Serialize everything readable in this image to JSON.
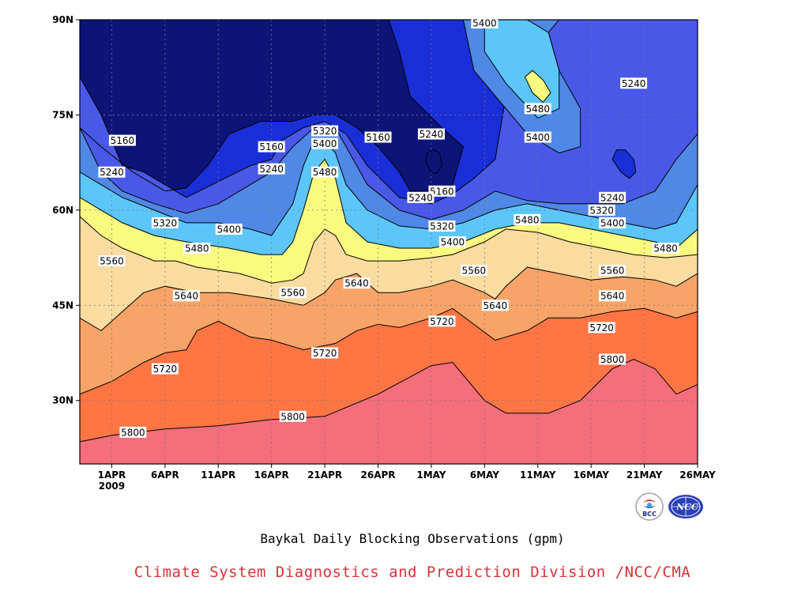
{
  "chart_data": {
    "type": "contour",
    "title": "Baykal Daily Blocking Observations (gpm)",
    "credit": "Climate System Diagnostics and Prediction Division /NCC/CMA",
    "x_ticks": [
      "1APR",
      "6APR",
      "11APR",
      "16APR",
      "21APR",
      "26APR",
      "1MAY",
      "6MAY",
      "11MAY",
      "16MAY",
      "21MAY",
      "26MAY"
    ],
    "x_tick_days": [
      1,
      6,
      11,
      16,
      21,
      26,
      31,
      36,
      41,
      46,
      51,
      56
    ],
    "x_year_label": "2009",
    "x_range_days": [
      -2,
      56
    ],
    "y_ticks": [
      "30N",
      "45N",
      "60N",
      "75N",
      "90N"
    ],
    "y_tick_values": [
      30,
      45,
      60,
      75,
      90
    ],
    "y_range": [
      20,
      90
    ],
    "grid": true,
    "contour_levels": [
      5160,
      5240,
      5320,
      5400,
      5480,
      5560,
      5640,
      5720,
      5800
    ],
    "fill_colors": [
      "#0c1478",
      "#1a2ed8",
      "#4a58e8",
      "#5088e6",
      "#5cc6fa",
      "#fafa80",
      "#fadca0",
      "#f8a468",
      "#ff7644",
      "#f46e7c"
    ],
    "contours": [
      {
        "level": 5800,
        "points": [
          [
            -2,
            23.5
          ],
          [
            1,
            24.5
          ],
          [
            6,
            25.5
          ],
          [
            11,
            26
          ],
          [
            16,
            27
          ],
          [
            21,
            27.5
          ],
          [
            26,
            31
          ],
          [
            31,
            35.5
          ],
          [
            33,
            36
          ],
          [
            36,
            30
          ],
          [
            38,
            28
          ],
          [
            42,
            28
          ],
          [
            45,
            30
          ],
          [
            48,
            35
          ],
          [
            50,
            36.5
          ],
          [
            52,
            35
          ],
          [
            54,
            31
          ],
          [
            56,
            32.5
          ]
        ]
      },
      {
        "level": 5720,
        "points": [
          [
            -2,
            31
          ],
          [
            1,
            33
          ],
          [
            4,
            36
          ],
          [
            6,
            37.5
          ],
          [
            8,
            38
          ],
          [
            9,
            41
          ],
          [
            11,
            42.5
          ],
          [
            14,
            40
          ],
          [
            16,
            39.5
          ],
          [
            19,
            38
          ],
          [
            22,
            39
          ],
          [
            24,
            41
          ],
          [
            26,
            42
          ],
          [
            28,
            41.5
          ],
          [
            31,
            43
          ],
          [
            33,
            44.5
          ],
          [
            35,
            42
          ],
          [
            37,
            39.5
          ],
          [
            40,
            41
          ],
          [
            42,
            43
          ],
          [
            45,
            43
          ],
          [
            48,
            44
          ],
          [
            51,
            44.5
          ],
          [
            54,
            43
          ],
          [
            56,
            44
          ]
        ]
      },
      {
        "level": 5640,
        "points": [
          [
            -2,
            43
          ],
          [
            0,
            41
          ],
          [
            2,
            44
          ],
          [
            4,
            47
          ],
          [
            6,
            48
          ],
          [
            9,
            47
          ],
          [
            12,
            47
          ],
          [
            16,
            46
          ],
          [
            19,
            45
          ],
          [
            21,
            47
          ],
          [
            22,
            49
          ],
          [
            24,
            50
          ],
          [
            26,
            47
          ],
          [
            28,
            47
          ],
          [
            31,
            48
          ],
          [
            33,
            49
          ],
          [
            36,
            47
          ],
          [
            37,
            46
          ],
          [
            38,
            48
          ],
          [
            40,
            51
          ],
          [
            43,
            50
          ],
          [
            46,
            49
          ],
          [
            49,
            49.5
          ],
          [
            52,
            49
          ],
          [
            54,
            48
          ],
          [
            56,
            50
          ]
        ]
      },
      {
        "level": 5560,
        "points": [
          [
            -2,
            59
          ],
          [
            0,
            56
          ],
          [
            2,
            54
          ],
          [
            5,
            52
          ],
          [
            7,
            52
          ],
          [
            9,
            51
          ],
          [
            13,
            50
          ],
          [
            16,
            48.5
          ],
          [
            18,
            49
          ],
          [
            19,
            50
          ],
          [
            20,
            55
          ],
          [
            21,
            57
          ],
          [
            22,
            56
          ],
          [
            23,
            53
          ],
          [
            25,
            52
          ],
          [
            28,
            52
          ],
          [
            31,
            52.5
          ],
          [
            33,
            53
          ],
          [
            36,
            55
          ],
          [
            38,
            57
          ],
          [
            41,
            56.5
          ],
          [
            44,
            55
          ],
          [
            47,
            54
          ],
          [
            50,
            53
          ],
          [
            53,
            52.5
          ],
          [
            56,
            53
          ]
        ]
      },
      {
        "level": 5480,
        "points": [
          [
            -2,
            62
          ],
          [
            0,
            60
          ],
          [
            2,
            58
          ],
          [
            5,
            56
          ],
          [
            8,
            55
          ],
          [
            12,
            54
          ],
          [
            15,
            53
          ],
          [
            17,
            53
          ],
          [
            18,
            55
          ],
          [
            19,
            60
          ],
          [
            20,
            66
          ],
          [
            21,
            68
          ],
          [
            22,
            65
          ],
          [
            23,
            58
          ],
          [
            25,
            55
          ],
          [
            28,
            54
          ],
          [
            31,
            54
          ],
          [
            34,
            55
          ],
          [
            37,
            57
          ],
          [
            40,
            58
          ],
          [
            43,
            58
          ],
          [
            46,
            57
          ],
          [
            49,
            56
          ],
          [
            52,
            55
          ],
          [
            54,
            54
          ],
          [
            56,
            57
          ],
          [
            56,
            70
          ]
        ]
      },
      {
        "level": 5400,
        "points": [
          [
            -2,
            66
          ],
          [
            0,
            64
          ],
          [
            2,
            62
          ],
          [
            5,
            60
          ],
          [
            8,
            58
          ],
          [
            11,
            58
          ],
          [
            14,
            57
          ],
          [
            16,
            56
          ],
          [
            18,
            61
          ],
          [
            19,
            67
          ],
          [
            20,
            71
          ],
          [
            21,
            71
          ],
          [
            22,
            69
          ],
          [
            23,
            64
          ],
          [
            25,
            60
          ],
          [
            28,
            57.5
          ],
          [
            31,
            57
          ],
          [
            34,
            58
          ],
          [
            37,
            60
          ],
          [
            40,
            61
          ],
          [
            43,
            60
          ],
          [
            46,
            59
          ],
          [
            49,
            58
          ],
          [
            52,
            57
          ],
          [
            54,
            58
          ],
          [
            56,
            64
          ],
          [
            56,
            75
          ]
        ]
      },
      {
        "level": 5320,
        "points": [
          [
            -2,
            73
          ],
          [
            0,
            66
          ],
          [
            2,
            63
          ],
          [
            5,
            61
          ],
          [
            8,
            59.5
          ],
          [
            11,
            61
          ],
          [
            14,
            64
          ],
          [
            16,
            66
          ],
          [
            18,
            70
          ],
          [
            20,
            73
          ],
          [
            22,
            73
          ],
          [
            23,
            70
          ],
          [
            25,
            64
          ],
          [
            28,
            60
          ],
          [
            31,
            58.5
          ],
          [
            34,
            60
          ],
          [
            37,
            63
          ],
          [
            40,
            61.5
          ],
          [
            43,
            61
          ],
          [
            46,
            61
          ],
          [
            49,
            61
          ],
          [
            52,
            63
          ],
          [
            54,
            68
          ],
          [
            56,
            72
          ]
        ]
      },
      {
        "level": 5240,
        "points": [
          [
            -2,
            81
          ],
          [
            0,
            75
          ],
          [
            2,
            67
          ],
          [
            4,
            66
          ],
          [
            6,
            64
          ],
          [
            8,
            62
          ],
          [
            11,
            64.5
          ],
          [
            14,
            67
          ],
          [
            16,
            68
          ],
          [
            17,
            71
          ],
          [
            19,
            73
          ],
          [
            21,
            74
          ],
          [
            23,
            72
          ],
          [
            25,
            67
          ],
          [
            28,
            62
          ],
          [
            31,
            61
          ],
          [
            33,
            62.5
          ],
          [
            35,
            65
          ],
          [
            37,
            68
          ],
          [
            38,
            78
          ],
          [
            37,
            86
          ],
          [
            38,
            90
          ]
        ]
      },
      {
        "level": 5160,
        "points": [
          [
            -2,
            73
          ],
          [
            0,
            70
          ],
          [
            3,
            66
          ],
          [
            6,
            63
          ],
          [
            8,
            63.5
          ],
          [
            10,
            67
          ],
          [
            12,
            72
          ],
          [
            15,
            74
          ],
          [
            18,
            74
          ],
          [
            20,
            75
          ],
          [
            22,
            75
          ],
          [
            24,
            73
          ],
          [
            26,
            70
          ],
          [
            28,
            66
          ],
          [
            29,
            63
          ],
          [
            31,
            63
          ],
          [
            33,
            64
          ],
          [
            34,
            70
          ],
          [
            32,
            73
          ],
          [
            29,
            78
          ],
          [
            28,
            85
          ],
          [
            27,
            90
          ]
        ]
      }
    ],
    "contour_labels": [
      {
        "text": "5160",
        "day": 2,
        "lat": 71
      },
      {
        "text": "5240",
        "day": 1,
        "lat": 66
      },
      {
        "text": "5320",
        "day": 6,
        "lat": 58
      },
      {
        "text": "5480",
        "day": 9,
        "lat": 54
      },
      {
        "text": "5400",
        "day": 12,
        "lat": 57
      },
      {
        "text": "5160",
        "day": 16,
        "lat": 70
      },
      {
        "text": "5240",
        "day": 16,
        "lat": 66.5
      },
      {
        "text": "5560",
        "day": 1,
        "lat": 52
      },
      {
        "text": "5640",
        "day": 8,
        "lat": 46.5
      },
      {
        "text": "5720",
        "day": 6,
        "lat": 35
      },
      {
        "text": "5800",
        "day": 3,
        "lat": 25
      },
      {
        "text": "5320",
        "day": 21,
        "lat": 72.5
      },
      {
        "text": "5400",
        "day": 21,
        "lat": 70.5
      },
      {
        "text": "5480",
        "day": 21,
        "lat": 66
      },
      {
        "text": "5160",
        "day": 26,
        "lat": 71.5
      },
      {
        "text": "5240",
        "day": 31,
        "lat": 72
      },
      {
        "text": "5160",
        "day": 32,
        "lat": 63
      },
      {
        "text": "5240",
        "day": 30,
        "lat": 62
      },
      {
        "text": "5320",
        "day": 32,
        "lat": 57.5
      },
      {
        "text": "5400",
        "day": 33,
        "lat": 55
      },
      {
        "text": "5560",
        "day": 35,
        "lat": 50.5
      },
      {
        "text": "5640",
        "day": 37,
        "lat": 45
      },
      {
        "text": "5720",
        "day": 32,
        "lat": 42.5
      },
      {
        "text": "5560",
        "day": 18,
        "lat": 47
      },
      {
        "text": "5640",
        "day": 24,
        "lat": 48.5
      },
      {
        "text": "5720",
        "day": 21,
        "lat": 37.5
      },
      {
        "text": "5800",
        "day": 18,
        "lat": 27.5
      },
      {
        "text": "5400",
        "day": 36,
        "lat": 89.5
      },
      {
        "text": "5480",
        "day": 41,
        "lat": 76
      },
      {
        "text": "5400",
        "day": 41,
        "lat": 71.5
      },
      {
        "text": "5480",
        "day": 40,
        "lat": 58.5
      },
      {
        "text": "5240",
        "day": 50,
        "lat": 80
      },
      {
        "text": "5240",
        "day": 48,
        "lat": 62
      },
      {
        "text": "5320",
        "day": 47,
        "lat": 60
      },
      {
        "text": "5400",
        "day": 48,
        "lat": 58
      },
      {
        "text": "5480",
        "day": 53,
        "lat": 54
      },
      {
        "text": "5560",
        "day": 48,
        "lat": 50.5
      },
      {
        "text": "5640",
        "day": 48,
        "lat": 46.5
      },
      {
        "text": "5720",
        "day": 47,
        "lat": 41.5
      },
      {
        "text": "5800",
        "day": 48,
        "lat": 36.5
      }
    ]
  },
  "logos": [
    {
      "name": "bcc-logo",
      "text": "BCC"
    },
    {
      "name": "ncc-logo",
      "text": "NCC"
    }
  ]
}
